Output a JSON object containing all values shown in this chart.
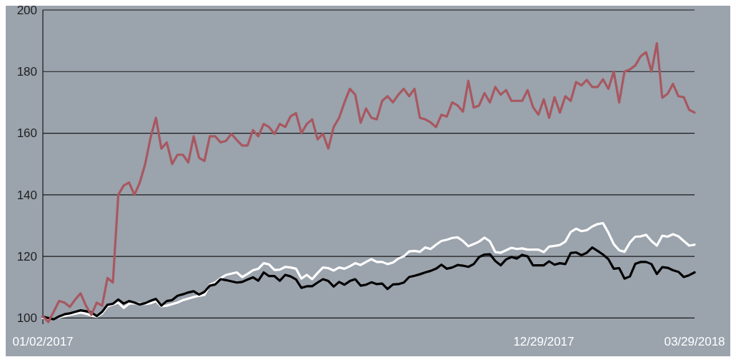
{
  "chart_data": {
    "type": "line",
    "categories": [
      "01/02/2017",
      null,
      null,
      null,
      null,
      null,
      null,
      null,
      null,
      null,
      null,
      null,
      null,
      null,
      null,
      null,
      null,
      null,
      null,
      null,
      null,
      null,
      null,
      null,
      null,
      null,
      null,
      null,
      null,
      null,
      null,
      null,
      null,
      null,
      null,
      null,
      null,
      null,
      null,
      null,
      null,
      null,
      null,
      null,
      null,
      null,
      null,
      null,
      null,
      null,
      null,
      null,
      null,
      null,
      null,
      null,
      null,
      null,
      null,
      null,
      null,
      null,
      null,
      null,
      null,
      null,
      null,
      null,
      null,
      null,
      null,
      null,
      null,
      null,
      null,
      null,
      null,
      null,
      null,
      null,
      null,
      null,
      null,
      null,
      null,
      null,
      null,
      null,
      null,
      null,
      null,
      null,
      null,
      "12/29/2017",
      null,
      null,
      null,
      null,
      null,
      null,
      null,
      null,
      null,
      null,
      null,
      null,
      null,
      null,
      null,
      null,
      null,
      null,
      null,
      null,
      null,
      null,
      null,
      null,
      null,
      null,
      null,
      "03/29/2018"
    ],
    "ylim": [
      98,
      200
    ],
    "yticks": [
      100,
      120,
      140,
      160,
      180,
      200
    ],
    "grid": "y",
    "series": [
      {
        "color": "#ffffff",
        "values": [
          100,
          99.8,
          99.8,
          100.2,
          100.6,
          101,
          101.4,
          101.8,
          101.4,
          100.8,
          100.4,
          101.5,
          103.8,
          104.4,
          105,
          103.3,
          104.6,
          104.8,
          104.7,
          104.5,
          104.8,
          105.5,
          103.8,
          104,
          104.5,
          105,
          105.8,
          106.3,
          106.8,
          107.2,
          107.5,
          110.8,
          111.5,
          112.9,
          114,
          114.4,
          114.8,
          113.3,
          114.3,
          115.5,
          116,
          117.8,
          117.4,
          115.6,
          115.7,
          116.6,
          116.4,
          116,
          112.8,
          114,
          112.6,
          114.6,
          116.4,
          116.2,
          115.4,
          116.4,
          116,
          116.8,
          117.8,
          117.2,
          118.2,
          119.1,
          118.2,
          118.2,
          117.5,
          118,
          119.3,
          120,
          121.6,
          121.8,
          121.5,
          122.9,
          122.4,
          123.8,
          125,
          125.4,
          126,
          126.2,
          125,
          123.3,
          124,
          124.8,
          126.1,
          124.9,
          121.4,
          121.2,
          122,
          122.8,
          122.4,
          122.6,
          122.2,
          122.2,
          122.2,
          121.4,
          123.2,
          123.4,
          123.7,
          124.8,
          127.9,
          129,
          128.2,
          128.5,
          129.7,
          130.5,
          130.8,
          127.7,
          124,
          122,
          121.5,
          124.5,
          126.4,
          126.5,
          127,
          125,
          123.5,
          126.7,
          126.4,
          127.2,
          126.5,
          125,
          123.5,
          123.8
        ]
      },
      {
        "color": "#000000",
        "values": [
          100.4,
          100,
          99.6,
          100.5,
          101.2,
          101.5,
          102,
          102.5,
          102.2,
          101.8,
          100.6,
          102,
          104.3,
          104.6,
          106,
          104.7,
          105.5,
          105,
          104.4,
          104.8,
          105.6,
          106.2,
          104,
          105.5,
          105.8,
          107.2,
          107.7,
          108.3,
          108.7,
          107.6,
          108.5,
          110.5,
          110.9,
          112.6,
          112.3,
          111.9,
          111.5,
          111.7,
          112.5,
          113.2,
          112.1,
          114.8,
          113.6,
          113.6,
          112.1,
          114,
          113.5,
          112.5,
          109.8,
          110.3,
          110.3,
          111.5,
          112.6,
          112,
          110.2,
          111.7,
          110.8,
          112,
          112.6,
          110.5,
          110.8,
          111.6,
          111,
          111.2,
          109.4,
          110.9,
          111,
          111.5,
          113.3,
          113.7,
          114.2,
          114.8,
          115.3,
          116,
          117.3,
          116,
          116.4,
          117.2,
          117,
          116.6,
          117.5,
          119.8,
          120.6,
          120.7,
          118.5,
          117.1,
          119,
          119.8,
          119.3,
          120.5,
          120,
          117.1,
          117.1,
          117.1,
          118.4,
          117.3,
          117.8,
          117.5,
          121.1,
          121.3,
          120.4,
          121.2,
          122.9,
          121.8,
          120.6,
          119.1,
          116,
          116.2,
          112.8,
          113.5,
          117.6,
          118.2,
          118.2,
          117.5,
          114.3,
          116.5,
          116.3,
          115.5,
          115,
          113.3,
          113.9,
          114.8
        ]
      },
      {
        "color": "#a85860",
        "values": [
          100.5,
          98.7,
          102,
          105.5,
          105,
          103.6,
          106,
          108,
          104,
          101,
          105,
          104,
          113,
          111.5,
          140,
          143,
          144,
          140,
          144,
          150,
          158.6,
          165,
          155,
          157,
          150,
          153,
          153,
          150.5,
          159,
          152,
          151,
          159,
          159,
          157,
          157.5,
          159.8,
          157.8,
          156,
          156,
          161,
          159,
          163,
          162,
          159.8,
          163,
          162,
          165.5,
          166.5,
          160,
          163,
          164.5,
          158,
          159.8,
          155,
          162,
          165,
          170,
          174.4,
          172.5,
          163.4,
          168,
          165,
          164.5,
          170.5,
          172,
          170,
          172.5,
          174.4,
          172,
          174.4,
          165,
          164.5,
          163.5,
          162,
          166,
          165.4,
          170,
          169,
          167,
          177,
          168.3,
          169,
          173,
          170,
          175,
          172.5,
          174,
          170.5,
          170.5,
          170.5,
          174,
          168.5,
          166,
          171,
          165,
          171.7,
          166.7,
          172,
          170.5,
          176.6,
          175.5,
          177.3,
          175,
          175,
          177.5,
          174.4,
          180,
          170,
          180,
          180.7,
          182,
          185,
          186.3,
          180,
          189.2,
          171.5,
          172.8,
          176,
          172,
          171.7,
          167.6,
          166.7
        ]
      }
    ]
  }
}
